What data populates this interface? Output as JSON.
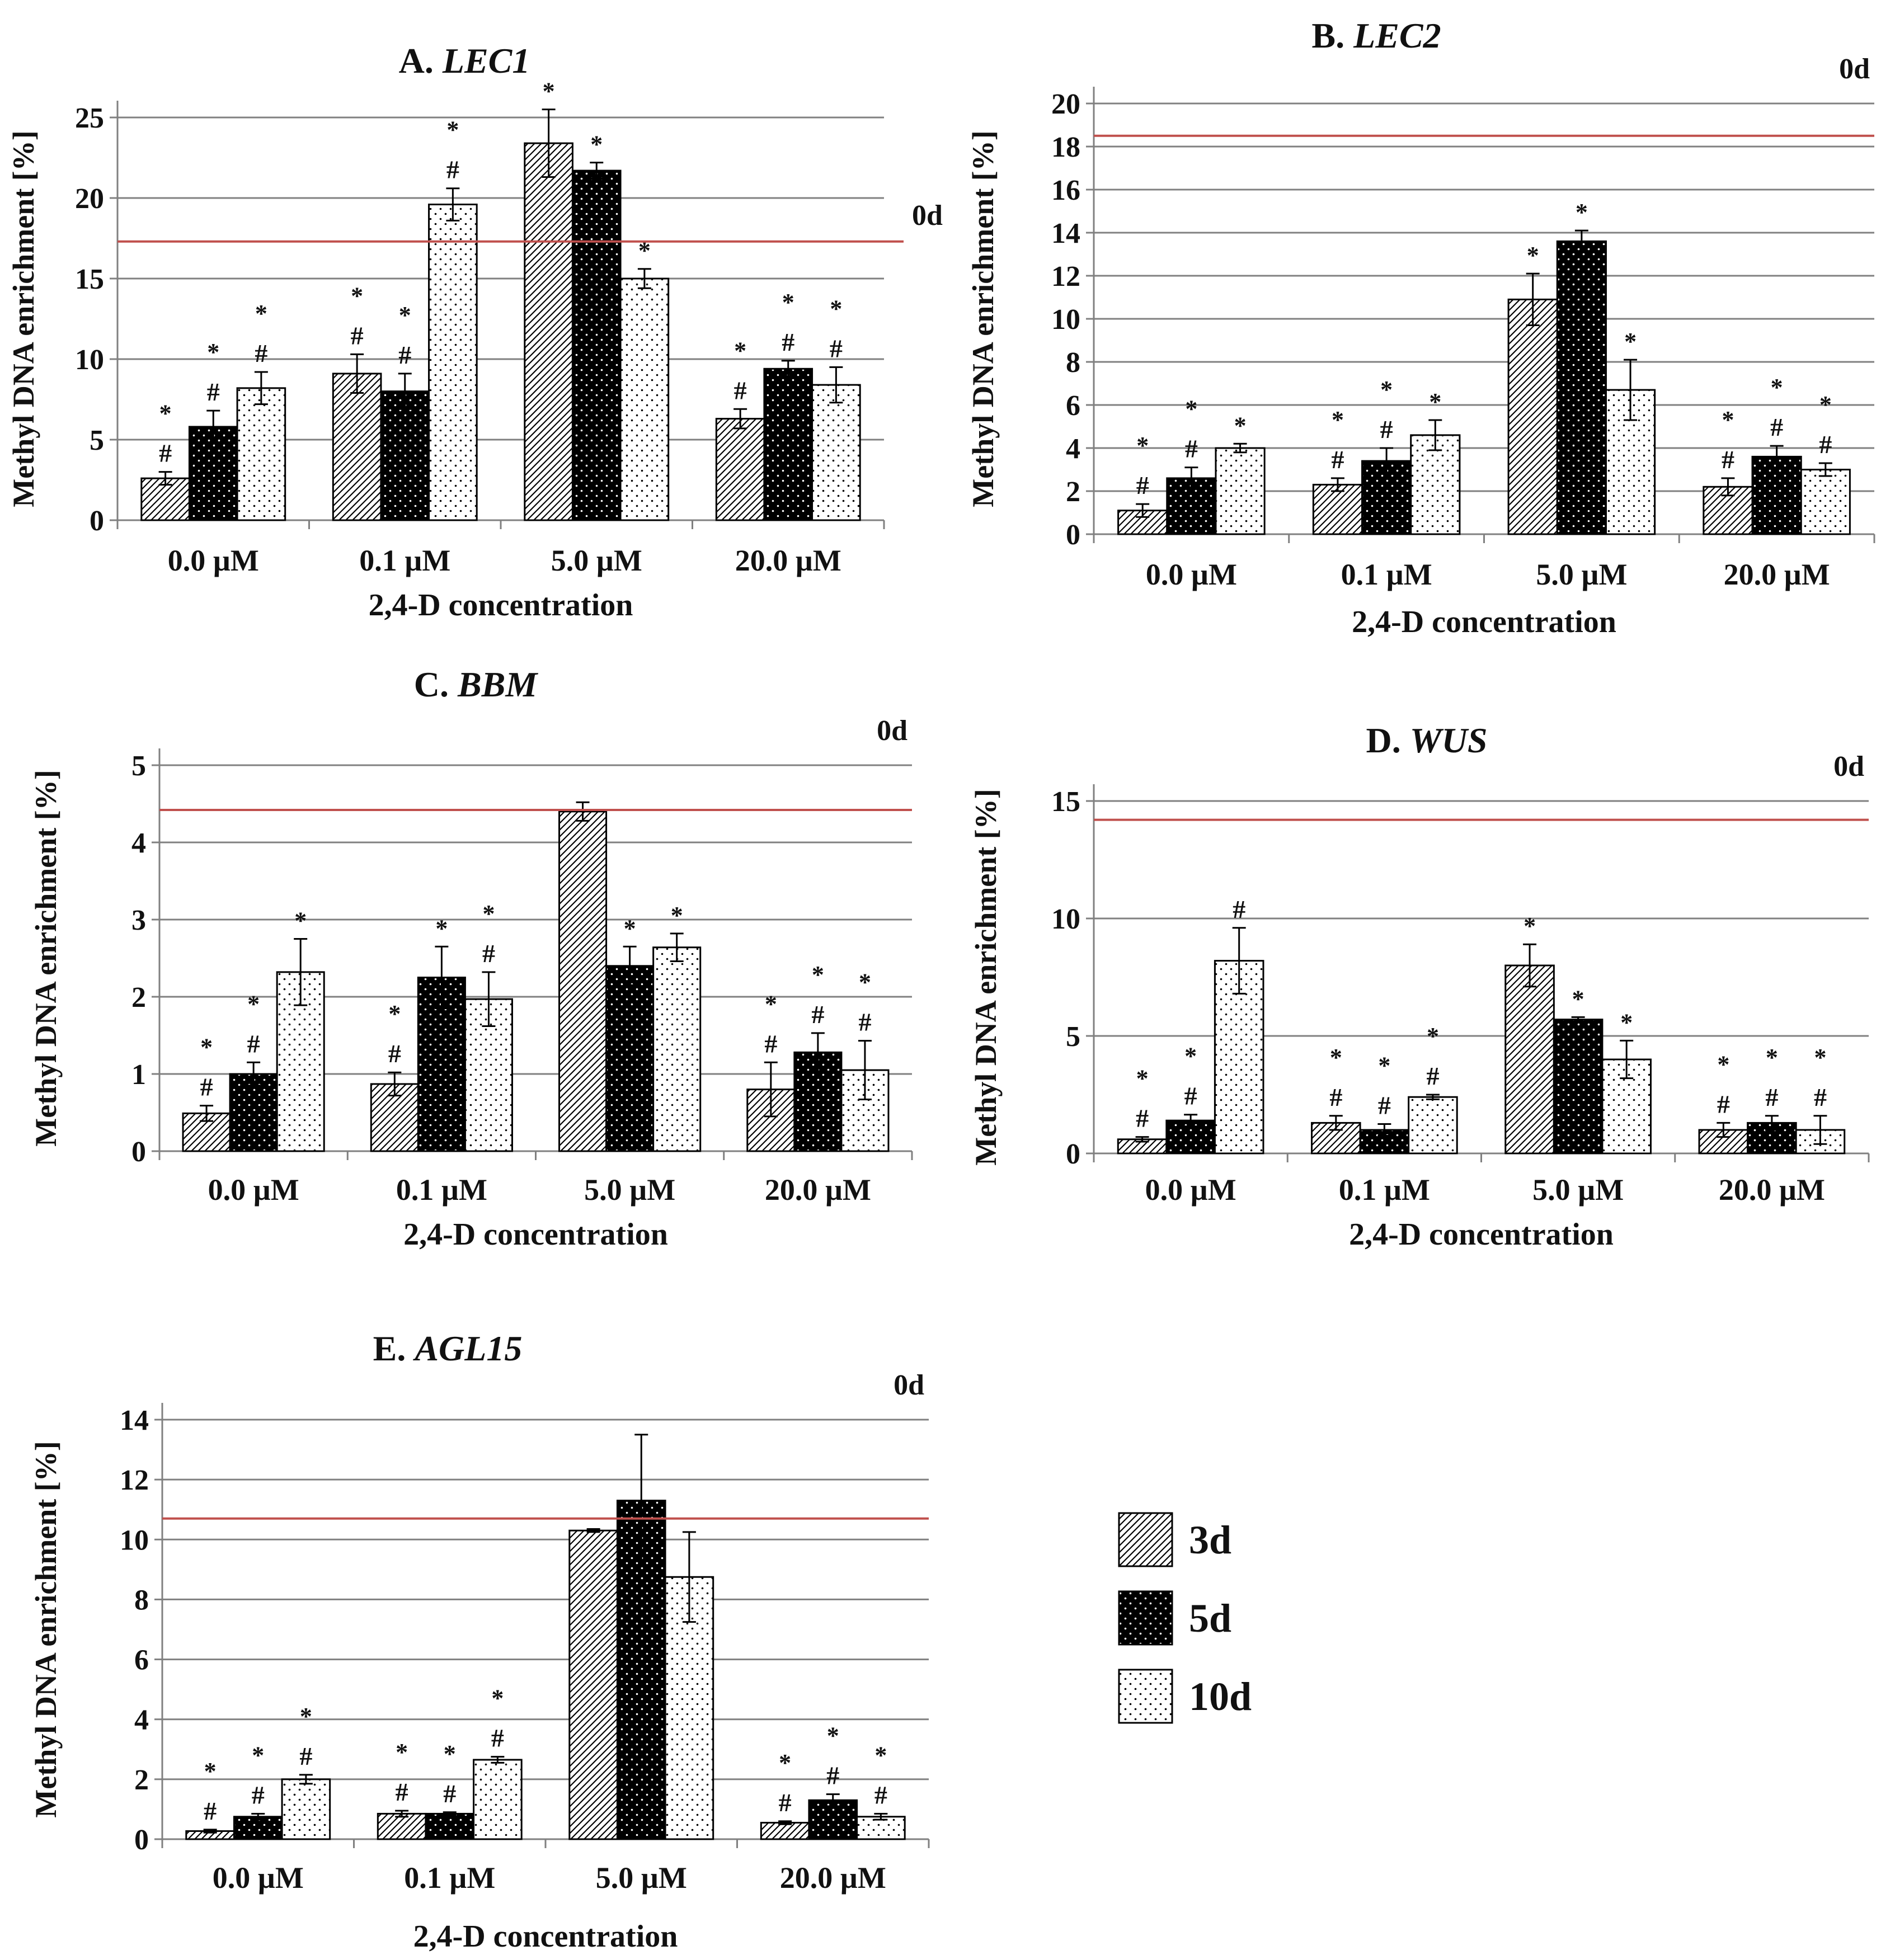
{
  "figure": {
    "legend_label": "",
    "colors": {
      "gridline": "#808080",
      "axis": "#808080",
      "reference_line": "#c0504d",
      "bar_outline": "#000000",
      "text": "#111111"
    },
    "pattern_icons": [
      "diagonal-hatch-icon",
      "black-dotted-icon",
      "white-dotted-icon"
    ]
  },
  "chart_data": [
    {
      "type": "bar",
      "panel_letter": "A.",
      "gene": "LEC1",
      "title": "A. LEC1",
      "xlabel": "2,4-D concentration",
      "ylabel": "Methyl DNA enrichment [%]",
      "categories": [
        "0.0 µM",
        "0.1  µM",
        "5.0  µM",
        "20.0  µM"
      ],
      "ylim": [
        0,
        25
      ],
      "yticks": [
        0,
        5,
        10,
        15,
        20,
        25
      ],
      "grid": true,
      "reference_line": {
        "value": 17.3,
        "label": "0d"
      },
      "series": [
        {
          "name": "3d",
          "pattern": "hatch",
          "values": [
            2.6,
            9.1,
            23.4,
            6.3
          ],
          "errors": [
            0.4,
            1.2,
            2.1,
            0.6
          ],
          "marks": [
            [
              "*",
              "#"
            ],
            [
              "*",
              "#"
            ],
            [
              "*"
            ],
            [
              "*",
              "#"
            ]
          ]
        },
        {
          "name": "5d",
          "pattern": "black-dots",
          "values": [
            5.8,
            8.0,
            21.7,
            9.4
          ],
          "errors": [
            1.0,
            1.1,
            0.5,
            0.5
          ],
          "marks": [
            [
              "*",
              "#"
            ],
            [
              "*",
              "#"
            ],
            [
              "*"
            ],
            [
              "*",
              "#"
            ]
          ]
        },
        {
          "name": "10d",
          "pattern": "white-dots",
          "values": [
            8.2,
            19.6,
            15.0,
            8.4
          ],
          "errors": [
            1.0,
            1.0,
            0.6,
            1.1
          ],
          "marks": [
            [
              "*",
              "#"
            ],
            [
              "*",
              "#"
            ],
            [
              "*"
            ],
            [
              "*",
              "#"
            ]
          ]
        }
      ]
    },
    {
      "type": "bar",
      "panel_letter": "B.",
      "gene": "LEC2",
      "title": "B. LEC2",
      "xlabel": "2,4-D concentration",
      "ylabel": "Methyl DNA enrichment [%]",
      "categories": [
        "0.0 µM",
        "0.1  µM",
        "5.0  µM",
        "20.0  µM"
      ],
      "ylim": [
        0,
        20
      ],
      "yticks": [
        0,
        2,
        4,
        6,
        8,
        10,
        12,
        14,
        16,
        18,
        20
      ],
      "grid": true,
      "reference_line": {
        "value": 18.5,
        "label": "0d"
      },
      "series": [
        {
          "name": "3d",
          "pattern": "hatch",
          "values": [
            1.1,
            2.3,
            10.9,
            2.2
          ],
          "errors": [
            0.3,
            0.3,
            1.2,
            0.4
          ],
          "marks": [
            [
              "*",
              "#"
            ],
            [
              "*",
              "#"
            ],
            [
              "*"
            ],
            [
              "*",
              "#"
            ]
          ]
        },
        {
          "name": "5d",
          "pattern": "black-dots",
          "values": [
            2.6,
            3.4,
            13.6,
            3.6
          ],
          "errors": [
            0.5,
            0.6,
            0.5,
            0.5
          ],
          "marks": [
            [
              "*",
              "#"
            ],
            [
              "*",
              "#"
            ],
            [
              "*"
            ],
            [
              "*",
              "#"
            ]
          ]
        },
        {
          "name": "10d",
          "pattern": "white-dots",
          "values": [
            4.0,
            4.6,
            6.7,
            3.0
          ],
          "errors": [
            0.2,
            0.7,
            1.4,
            0.3
          ],
          "marks": [
            [
              "*"
            ],
            [
              "*"
            ],
            [
              "*"
            ],
            [
              "*",
              "#"
            ]
          ]
        }
      ]
    },
    {
      "type": "bar",
      "panel_letter": "C.",
      "gene": "BBM",
      "title": "C. BBM",
      "xlabel": "2,4-D concentration",
      "ylabel": "Methyl DNA enrichment [%]",
      "categories": [
        "0.0 µM",
        "0.1  µM",
        "5.0  µM",
        "20.0  µM"
      ],
      "ylim": [
        0,
        5
      ],
      "yticks": [
        0,
        1,
        2,
        3,
        4,
        5
      ],
      "grid": true,
      "reference_line": {
        "value": 4.42,
        "label": "0d"
      },
      "series": [
        {
          "name": "3d",
          "pattern": "hatch",
          "values": [
            0.49,
            0.87,
            4.4,
            0.8
          ],
          "errors": [
            0.1,
            0.15,
            0.12,
            0.35
          ],
          "marks": [
            [
              "*",
              "#"
            ],
            [
              "*",
              "#"
            ],
            [],
            [
              "*",
              "#"
            ]
          ]
        },
        {
          "name": "5d",
          "pattern": "black-dots",
          "values": [
            1.0,
            2.25,
            2.4,
            1.28
          ],
          "errors": [
            0.15,
            0.4,
            0.25,
            0.25
          ],
          "marks": [
            [
              "*",
              "#"
            ],
            [
              "*"
            ],
            [
              "*"
            ],
            [
              "*",
              "#"
            ]
          ]
        },
        {
          "name": "10d",
          "pattern": "white-dots",
          "values": [
            2.32,
            1.97,
            2.64,
            1.05
          ],
          "errors": [
            0.43,
            0.35,
            0.18,
            0.38
          ],
          "marks": [
            [
              "*"
            ],
            [
              "*",
              "#"
            ],
            [
              "*"
            ],
            [
              "*",
              "#"
            ]
          ]
        }
      ]
    },
    {
      "type": "bar",
      "panel_letter": "D.",
      "gene": "WUS",
      "title": "D. WUS",
      "xlabel": "2,4-D concentration",
      "ylabel": "Methyl DNA enrichment [%]",
      "categories": [
        "0.0 µM",
        "0.1  µM",
        "5.0  µM",
        "20.0  µM"
      ],
      "ylim": [
        0,
        15
      ],
      "yticks": [
        0,
        5,
        10,
        15
      ],
      "grid": true,
      "reference_line": {
        "value": 14.2,
        "label": "0d"
      },
      "series": [
        {
          "name": "3d",
          "pattern": "hatch",
          "values": [
            0.6,
            1.3,
            8.0,
            1.0
          ],
          "errors": [
            0.1,
            0.3,
            0.9,
            0.3
          ],
          "marks": [
            [
              "*",
              "#"
            ],
            [
              "*",
              "#"
            ],
            [
              "*"
            ],
            [
              "*",
              "#"
            ]
          ]
        },
        {
          "name": "5d",
          "pattern": "black-dots",
          "values": [
            1.4,
            1.0,
            5.7,
            1.3
          ],
          "errors": [
            0.25,
            0.25,
            0.1,
            0.3
          ],
          "marks": [
            [
              "*",
              "#"
            ],
            [
              "*",
              "#"
            ],
            [
              "*"
            ],
            [
              "*",
              "#"
            ]
          ]
        },
        {
          "name": "10d",
          "pattern": "white-dots",
          "values": [
            8.2,
            2.4,
            4.0,
            1.0
          ],
          "errors": [
            1.4,
            0.1,
            0.8,
            0.6
          ],
          "marks": [
            [
              "#"
            ],
            [
              "*",
              "#"
            ],
            [
              "*"
            ],
            [
              "*",
              "#"
            ]
          ]
        }
      ]
    },
    {
      "type": "bar",
      "panel_letter": "E.",
      "gene": "AGL15",
      "title": "E. AGL15",
      "xlabel": "2,4-D concentration",
      "ylabel": "Methyl DNA enrichment [%]",
      "categories": [
        "0.0 µM",
        "0.1  µM",
        "5.0  µM",
        "20.0  µM"
      ],
      "ylim": [
        0,
        14
      ],
      "yticks": [
        0,
        2,
        4,
        6,
        8,
        10,
        12,
        14
      ],
      "grid": true,
      "reference_line": {
        "value": 10.7,
        "label": "0d"
      },
      "series": [
        {
          "name": "3d",
          "pattern": "hatch",
          "values": [
            0.27,
            0.85,
            10.3,
            0.55
          ],
          "errors": [
            0.05,
            0.1,
            0.05,
            0.05
          ],
          "marks": [
            [
              "*",
              "#"
            ],
            [
              "*",
              "#"
            ],
            [],
            [
              "*",
              "#"
            ]
          ]
        },
        {
          "name": "5d",
          "pattern": "black-dots",
          "values": [
            0.75,
            0.85,
            11.3,
            1.3
          ],
          "errors": [
            0.1,
            0.05,
            2.2,
            0.2
          ],
          "marks": [
            [
              "*",
              "#"
            ],
            [
              "*",
              "#"
            ],
            [],
            [
              "*",
              "#"
            ]
          ]
        },
        {
          "name": "10d",
          "pattern": "white-dots",
          "values": [
            2.0,
            2.65,
            8.75,
            0.75
          ],
          "errors": [
            0.15,
            0.1,
            1.5,
            0.1
          ],
          "marks": [
            [
              "*",
              "#"
            ],
            [
              "*",
              "#"
            ],
            [],
            [
              "*",
              "#"
            ]
          ]
        }
      ]
    }
  ],
  "legend": {
    "entries": [
      {
        "label": "3d",
        "pattern": "hatch"
      },
      {
        "label": "5d",
        "pattern": "black-dots"
      },
      {
        "label": "10d",
        "pattern": "white-dots"
      }
    ]
  }
}
